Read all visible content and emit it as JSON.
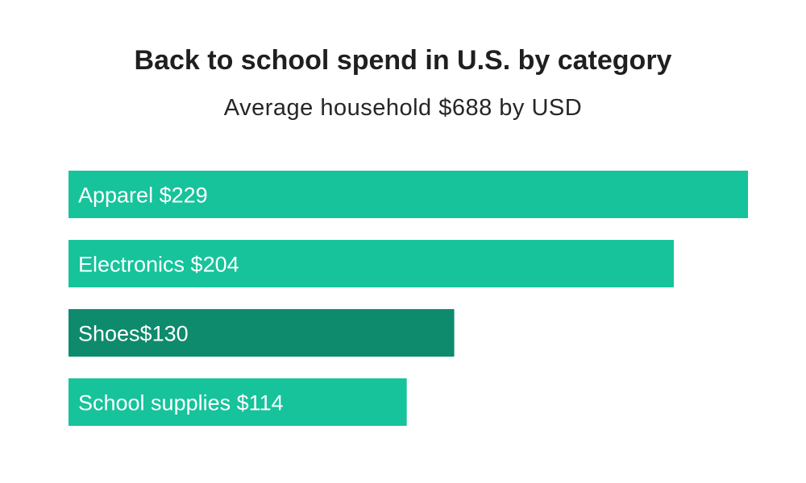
{
  "chart_data": {
    "type": "bar",
    "orientation": "horizontal",
    "title": "Back to school spend in U.S. by category",
    "subtitle": "Average household $688 by USD",
    "categories": [
      "Apparel",
      "Electronics",
      "Shoes",
      "School supplies"
    ],
    "values": [
      229,
      204,
      130,
      114
    ],
    "labels": [
      "Apparel $229",
      "Electronics $204",
      "Shoes$130",
      "School supplies $114"
    ],
    "colors": [
      "#16c39b",
      "#16c39b",
      "#0e8a6d",
      "#16c39b"
    ],
    "xlim": [
      0,
      229
    ],
    "grid": false,
    "legend": "none"
  }
}
